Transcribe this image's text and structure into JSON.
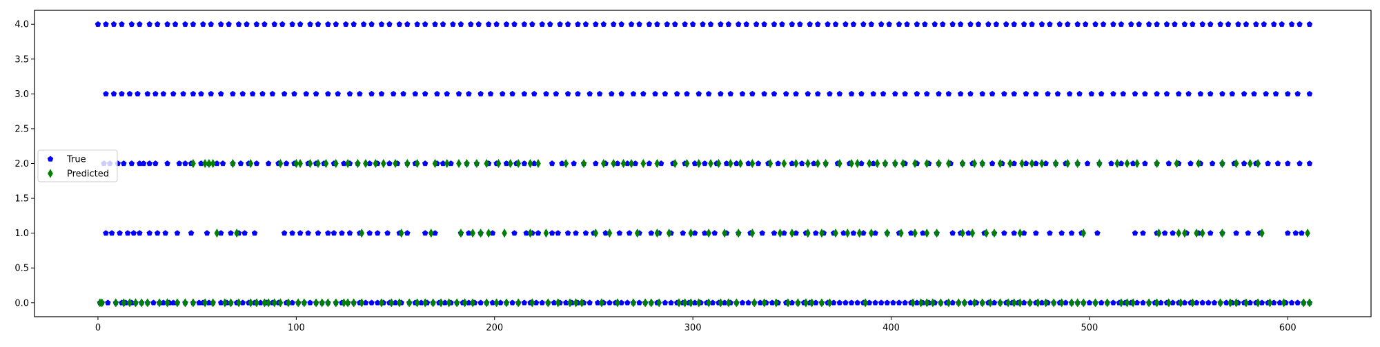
{
  "chart_data": {
    "type": "scatter",
    "title": "",
    "xlabel": "",
    "ylabel": "",
    "xlim": [
      -32,
      642
    ],
    "ylim": [
      -0.2,
      4.2
    ],
    "x_ticks": [
      0,
      100,
      200,
      300,
      400,
      500,
      600
    ],
    "y_ticks": [
      0.0,
      0.5,
      1.0,
      1.5,
      2.0,
      2.5,
      3.0,
      3.5,
      4.0
    ],
    "x_tick_labels": [
      "0",
      "100",
      "200",
      "300",
      "400",
      "500",
      "600"
    ],
    "y_tick_labels": [
      "0.0",
      "0.5",
      "1.0",
      "1.5",
      "2.0",
      "2.5",
      "3.0",
      "3.5",
      "4.0"
    ],
    "grid": false,
    "legend_position": "center-left",
    "series": [
      {
        "name": "True",
        "marker": "pentagon",
        "color": "#0000ff",
        "points": {
          "0": [
            1,
            2,
            5,
            9,
            12,
            14,
            17,
            19,
            22,
            25,
            28,
            31,
            33,
            36,
            38,
            40,
            44,
            48,
            51,
            53,
            56,
            58,
            62,
            65,
            67,
            70,
            73,
            76,
            79,
            82,
            85,
            88,
            91,
            95,
            98,
            101,
            104,
            107,
            110,
            113,
            116,
            120,
            123,
            126,
            129,
            132,
            135,
            138,
            141,
            144,
            147,
            150,
            153,
            157,
            160,
            163,
            166,
            169,
            172,
            175,
            178,
            181,
            184,
            187,
            190,
            193,
            196,
            199,
            203,
            206,
            209,
            212,
            215,
            218,
            221,
            224,
            227,
            230,
            233,
            236,
            239,
            242,
            245,
            248,
            252,
            255,
            258,
            261,
            264,
            267,
            270,
            273,
            276,
            279,
            282,
            286,
            289,
            292,
            295,
            298,
            301,
            304,
            307,
            310,
            313,
            316,
            319,
            322,
            325,
            328,
            331,
            334,
            337,
            340,
            343,
            347,
            350,
            353,
            356,
            359,
            362,
            365,
            368,
            371,
            374,
            377,
            380,
            383,
            386,
            389,
            392,
            395,
            398,
            401,
            404,
            407,
            410,
            413,
            416,
            419,
            422,
            425,
            428,
            431,
            434,
            437,
            440,
            443,
            446,
            449,
            452,
            455,
            458,
            461,
            464,
            467,
            470,
            473,
            476,
            479,
            482,
            485,
            488,
            491,
            494,
            497,
            500,
            503,
            506,
            509,
            512,
            515,
            518,
            521,
            524,
            527,
            530,
            533,
            536,
            539,
            542,
            545,
            548,
            551,
            554,
            557,
            560,
            563,
            566,
            569,
            572,
            575,
            578,
            581,
            584,
            587,
            590,
            593,
            596,
            599,
            602,
            605,
            608,
            611
          ],
          "1": [
            4,
            7,
            11,
            15,
            18,
            21,
            26,
            30,
            34,
            40,
            47,
            55,
            62,
            67,
            71,
            74,
            79,
            94,
            98,
            102,
            106,
            111,
            116,
            119,
            123,
            127,
            132,
            137,
            141,
            146,
            152,
            156,
            165,
            170,
            183,
            187,
            193,
            199,
            210,
            216,
            219,
            222,
            229,
            232,
            237,
            241,
            246,
            250,
            256,
            263,
            268,
            273,
            279,
            283,
            289,
            295,
            301,
            306,
            311,
            317,
            323,
            329,
            335,
            341,
            346,
            352,
            357,
            362,
            366,
            371,
            376,
            381,
            386,
            392,
            398,
            404,
            410,
            416,
            423,
            431,
            435,
            439,
            447,
            452,
            457,
            462,
            467,
            473,
            480,
            486,
            491,
            496,
            504,
            523,
            527,
            534,
            538,
            542,
            549,
            555,
            561,
            567,
            574,
            580,
            586,
            600,
            604,
            607
          ],
          "2": [
            3,
            6,
            10,
            13,
            17,
            21,
            23,
            26,
            29,
            35,
            41,
            44,
            47,
            52,
            56,
            60,
            63,
            68,
            72,
            76,
            80,
            86,
            91,
            95,
            99,
            106,
            110,
            114,
            119,
            124,
            127,
            131,
            137,
            141,
            147,
            151,
            156,
            160,
            165,
            171,
            174,
            178,
            186,
            191,
            197,
            201,
            206,
            211,
            215,
            220,
            229,
            234,
            240,
            245,
            251,
            256,
            262,
            267,
            271,
            278,
            284,
            290,
            296,
            301,
            306,
            312,
            317,
            322,
            328,
            333,
            338,
            343,
            350,
            355,
            361,
            367,
            373,
            379,
            385,
            391,
            397,
            402,
            407,
            413,
            419,
            424,
            430,
            436,
            441,
            446,
            451,
            456,
            462,
            468,
            473,
            478,
            483,
            488,
            494,
            499,
            505,
            511,
            516,
            522,
            528,
            534,
            540,
            545,
            551,
            556,
            562,
            567,
            573,
            578,
            584,
            590,
            595,
            600,
            606,
            611
          ],
          "3": [
            4,
            8,
            12,
            16,
            20,
            25,
            29,
            33,
            38,
            43,
            48,
            52,
            57,
            62,
            68,
            73,
            78,
            83,
            88,
            94,
            99,
            105,
            110,
            116,
            121,
            127,
            132,
            138,
            143,
            149,
            154,
            160,
            165,
            171,
            176,
            182,
            187,
            193,
            198,
            204,
            209,
            215,
            220,
            226,
            231,
            237,
            242,
            248,
            253,
            259,
            264,
            270,
            275,
            281,
            286,
            292,
            297,
            303,
            308,
            314,
            319,
            325,
            330,
            336,
            341,
            347,
            352,
            358,
            363,
            369,
            374,
            380,
            385,
            391,
            396,
            402,
            407,
            413,
            418,
            424,
            429,
            435,
            440,
            446,
            451,
            457,
            462,
            468,
            473,
            479,
            484,
            490,
            495,
            501,
            506,
            512,
            517,
            523,
            528,
            534,
            539,
            545,
            550,
            556,
            561,
            567,
            572,
            578,
            583,
            589,
            594,
            600,
            605,
            611
          ],
          "4": [
            0,
            4,
            8,
            12,
            17,
            21,
            26,
            30,
            35,
            39,
            44,
            48,
            53,
            57,
            62,
            66,
            71,
            75,
            80,
            84,
            89,
            93,
            98,
            102,
            107,
            111,
            116,
            120,
            125,
            129,
            134,
            138,
            143,
            147,
            152,
            156,
            161,
            165,
            170,
            174,
            179,
            183,
            188,
            192,
            197,
            201,
            206,
            210,
            215,
            219,
            224,
            228,
            233,
            237,
            242,
            246,
            251,
            255,
            260,
            264,
            269,
            273,
            278,
            282,
            287,
            291,
            296,
            300,
            305,
            309,
            314,
            318,
            323,
            327,
            332,
            336,
            341,
            345,
            350,
            354,
            359,
            363,
            368,
            372,
            377,
            381,
            386,
            390,
            395,
            399,
            404,
            408,
            413,
            417,
            422,
            426,
            431,
            435,
            440,
            444,
            449,
            453,
            458,
            462,
            467,
            471,
            476,
            480,
            485,
            489,
            494,
            498,
            503,
            507,
            512,
            516,
            521,
            525,
            530,
            534,
            539,
            543,
            548,
            552,
            557,
            561,
            566,
            570,
            575,
            579,
            584,
            588,
            593,
            597,
            602,
            606,
            611
          ]
        }
      },
      {
        "name": "Predicted",
        "marker": "thin_diamond",
        "color": "#008000",
        "points": {
          "0": [
            1,
            2,
            9,
            13,
            16,
            19,
            22,
            25,
            31,
            35,
            40,
            44,
            48,
            54,
            58,
            64,
            67,
            71,
            77,
            80,
            84,
            86,
            89,
            92,
            96,
            101,
            104,
            110,
            113,
            116,
            120,
            124,
            126,
            129,
            133,
            143,
            148,
            152,
            157,
            161,
            165,
            169,
            173,
            177,
            181,
            185,
            189,
            196,
            201,
            206,
            212,
            219,
            227,
            232,
            238,
            241,
            244,
            254,
            262,
            270,
            276,
            279,
            283,
            293,
            296,
            299,
            303,
            308,
            314,
            318,
            322,
            331,
            336,
            342,
            348,
            353,
            357,
            360,
            365,
            369,
            387,
            411,
            415,
            418,
            421,
            425,
            429,
            434,
            437,
            442,
            446,
            450,
            455,
            459,
            462,
            465,
            470,
            474,
            478,
            482,
            486,
            491,
            494,
            497,
            503,
            509,
            516,
            519,
            522,
            530,
            534,
            540,
            546,
            552,
            566,
            571,
            574,
            579,
            585,
            591,
            598,
            608,
            611
          ],
          "1": [
            60,
            70,
            133,
            153,
            168,
            183,
            189,
            193,
            197,
            205,
            218,
            226,
            251,
            258,
            272,
            282,
            288,
            299,
            308,
            316,
            323,
            330,
            344,
            350,
            358,
            365,
            372,
            378,
            384,
            390,
            398,
            405,
            412,
            418,
            423,
            436,
            441,
            448,
            452,
            465,
            497,
            535,
            545,
            548,
            554,
            557,
            567,
            587,
            610
          ],
          "2": [
            48,
            54,
            56,
            58,
            68,
            77,
            92,
            100,
            102,
            107,
            111,
            115,
            120,
            126,
            131,
            135,
            140,
            144,
            150,
            156,
            161,
            170,
            176,
            182,
            186,
            191,
            196,
            202,
            208,
            212,
            218,
            222,
            236,
            245,
            255,
            260,
            265,
            269,
            275,
            282,
            291,
            297,
            303,
            309,
            313,
            319,
            324,
            330,
            339,
            346,
            352,
            358,
            363,
            367,
            374,
            380,
            383,
            389,
            393,
            397,
            402,
            406,
            412,
            418,
            424,
            429,
            436,
            442,
            446,
            455,
            460,
            466,
            471,
            476,
            483,
            489,
            494,
            505,
            514,
            519,
            524,
            534,
            544,
            555,
            567,
            574,
            581,
            585
          ]
        }
      }
    ],
    "legend": [
      {
        "label": "True",
        "marker": "pentagon",
        "color": "#0000ff"
      },
      {
        "label": "Predicted",
        "marker": "thin_diamond",
        "color": "#008000"
      }
    ]
  }
}
